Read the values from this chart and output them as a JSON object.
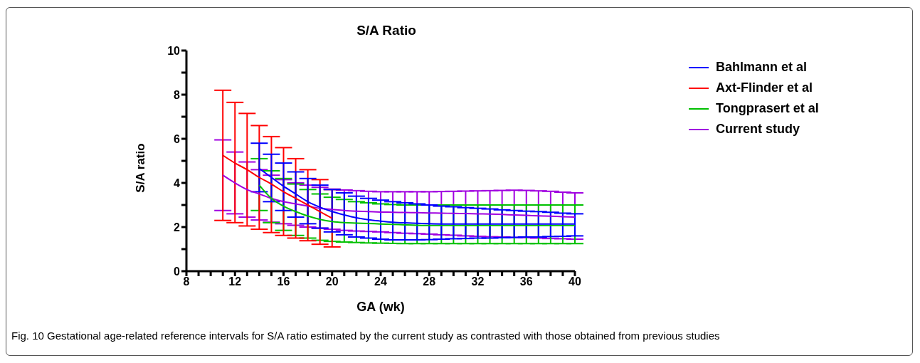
{
  "chart_data": {
    "type": "line",
    "title": "S/A Ratio",
    "xlabel": "GA (wk)",
    "ylabel": "S/A ratio",
    "annotations": [
      "Fig. 10 Gestational age-related reference intervals for S/A ratio estimated by the current study as contrasted with those obtained from previous studies"
    ],
    "xlim": [
      8,
      40
    ],
    "xticks": [
      8,
      {
        "value": 9,
        "label": null
      },
      {
        "value": 10,
        "label": null
      },
      {
        "value": 11,
        "label": null
      },
      12,
      {
        "value": 13,
        "label": null
      },
      {
        "value": 14,
        "label": null
      },
      {
        "value": 15,
        "label": null
      },
      16,
      {
        "value": 17,
        "label": null
      },
      {
        "value": 18,
        "label": null
      },
      {
        "value": 19,
        "label": null
      },
      20,
      {
        "value": 21,
        "label": null
      },
      {
        "value": 22,
        "label": null
      },
      {
        "value": 23,
        "label": null
      },
      24,
      {
        "value": 25,
        "label": null
      },
      {
        "value": 26,
        "label": null
      },
      {
        "value": 27,
        "label": null
      },
      28,
      {
        "value": 29,
        "label": null
      },
      {
        "value": 30,
        "label": null
      },
      {
        "value": 31,
        "label": null
      },
      32,
      {
        "value": 33,
        "label": null
      },
      {
        "value": 34,
        "label": null
      },
      {
        "value": 35,
        "label": null
      },
      36,
      {
        "value": 37,
        "label": null
      },
      {
        "value": 38,
        "label": null
      },
      {
        "value": 39,
        "label": null
      },
      40
    ],
    "ylim": [
      0,
      10
    ],
    "yticks": [
      0,
      {
        "value": 1,
        "label": null
      },
      2,
      {
        "value": 3,
        "label": null
      },
      4,
      {
        "value": 5,
        "label": null
      },
      6,
      {
        "value": 7,
        "label": null
      },
      8,
      {
        "value": 9,
        "label": null
      },
      10
    ],
    "grid": false,
    "legend": "right",
    "marker": "none",
    "line_style": "solid",
    "series": [
      {
        "name": "Bahlmann et al",
        "color": "#0000ff",
        "x": [
          14,
          15,
          16,
          17,
          18,
          19,
          20,
          21,
          22,
          23,
          24,
          25,
          26,
          27,
          28,
          29,
          30,
          31,
          32,
          33,
          34,
          35,
          36,
          37,
          38,
          39,
          40
        ],
        "values": [
          4.65,
          4.25,
          3.85,
          3.5,
          3.15,
          2.9,
          2.7,
          2.55,
          2.42,
          2.33,
          2.27,
          2.22,
          2.19,
          2.17,
          2.15,
          2.14,
          2.14,
          2.14,
          2.14,
          2.14,
          2.14,
          2.14,
          2.14,
          2.14,
          2.14,
          2.14,
          2.14
        ],
        "errors": [
          [
            3.6,
            5.8
          ],
          [
            3.15,
            5.3
          ],
          [
            2.75,
            4.9
          ],
          [
            2.45,
            4.5
          ],
          [
            2.15,
            4.2
          ],
          [
            1.95,
            3.9
          ],
          [
            1.78,
            3.7
          ],
          [
            1.65,
            3.55
          ],
          [
            1.55,
            3.4
          ],
          [
            1.5,
            3.3
          ],
          [
            1.45,
            3.22
          ],
          [
            1.42,
            3.15
          ],
          [
            1.42,
            3.1
          ],
          [
            1.42,
            3.05
          ],
          [
            1.43,
            3.0
          ],
          [
            1.45,
            2.95
          ],
          [
            1.47,
            2.92
          ],
          [
            1.48,
            2.88
          ],
          [
            1.5,
            2.85
          ],
          [
            1.5,
            2.82
          ],
          [
            1.52,
            2.78
          ],
          [
            1.53,
            2.75
          ],
          [
            1.55,
            2.72
          ],
          [
            1.55,
            2.7
          ],
          [
            1.57,
            2.67
          ],
          [
            1.58,
            2.63
          ],
          [
            1.6,
            2.6
          ]
        ]
      },
      {
        "name": "Axt-Flinder et al",
        "color": "#ff0000",
        "x": [
          11,
          12,
          13,
          14,
          15,
          16,
          17,
          18,
          19,
          20
        ],
        "values": [
          5.25,
          4.9,
          4.6,
          4.25,
          3.95,
          3.6,
          3.3,
          3.0,
          2.7,
          2.4
        ],
        "errors": [
          [
            2.3,
            8.2
          ],
          [
            2.2,
            7.65
          ],
          [
            2.05,
            7.15
          ],
          [
            1.9,
            6.6
          ],
          [
            1.75,
            6.1
          ],
          [
            1.62,
            5.6
          ],
          [
            1.5,
            5.1
          ],
          [
            1.38,
            4.6
          ],
          [
            1.22,
            4.15
          ],
          [
            1.1,
            3.7
          ]
        ]
      },
      {
        "name": "Tongprasert et al",
        "color": "#00c000",
        "x": [
          14,
          15,
          16,
          17,
          18,
          19,
          20,
          21,
          22,
          23,
          24,
          25,
          26,
          27,
          28,
          29,
          30,
          31,
          32,
          33,
          34,
          35,
          36,
          37,
          38,
          39,
          40
        ],
        "values": [
          3.9,
          3.3,
          2.95,
          2.7,
          2.5,
          2.35,
          2.25,
          2.2,
          2.18,
          2.16,
          2.14,
          2.12,
          2.1,
          2.08,
          2.07,
          2.07,
          2.07,
          2.07,
          2.07,
          2.07,
          2.07,
          2.07,
          2.07,
          2.07,
          2.07,
          2.07,
          2.07
        ],
        "errors": [
          [
            2.75,
            5.1
          ],
          [
            2.2,
            4.55
          ],
          [
            1.85,
            4.2
          ],
          [
            1.62,
            3.95
          ],
          [
            1.5,
            3.7
          ],
          [
            1.4,
            3.5
          ],
          [
            1.35,
            3.35
          ],
          [
            1.32,
            3.25
          ],
          [
            1.3,
            3.15
          ],
          [
            1.28,
            3.1
          ],
          [
            1.27,
            3.05
          ],
          [
            1.26,
            3.02
          ],
          [
            1.25,
            3.0
          ],
          [
            1.25,
            3.0
          ],
          [
            1.25,
            3.0
          ],
          [
            1.25,
            3.0
          ],
          [
            1.25,
            3.0
          ],
          [
            1.25,
            3.0
          ],
          [
            1.25,
            3.0
          ],
          [
            1.25,
            3.0
          ],
          [
            1.25,
            3.0
          ],
          [
            1.25,
            3.0
          ],
          [
            1.25,
            3.0
          ],
          [
            1.25,
            3.0
          ],
          [
            1.25,
            3.0
          ],
          [
            1.25,
            3.0
          ],
          [
            1.25,
            3.0
          ]
        ]
      },
      {
        "name": "Current study",
        "color": "#a000e0",
        "x": [
          11,
          12,
          13,
          14,
          15,
          16,
          17,
          18,
          19,
          20,
          21,
          22,
          23,
          24,
          25,
          26,
          27,
          28,
          29,
          30,
          31,
          32,
          33,
          34,
          35,
          36,
          37,
          38,
          39,
          40
        ],
        "values": [
          4.35,
          4.0,
          3.7,
          3.5,
          3.3,
          3.15,
          3.05,
          2.95,
          2.85,
          2.8,
          2.75,
          2.72,
          2.7,
          2.68,
          2.67,
          2.66,
          2.65,
          2.64,
          2.63,
          2.62,
          2.61,
          2.6,
          2.59,
          2.57,
          2.55,
          2.53,
          2.51,
          2.49,
          2.47,
          2.45
        ],
        "errors": [
          [
            2.75,
            5.95
          ],
          [
            2.6,
            5.4
          ],
          [
            2.45,
            4.95
          ],
          [
            2.32,
            4.6
          ],
          [
            2.22,
            4.35
          ],
          [
            2.15,
            4.15
          ],
          [
            2.08,
            4.0
          ],
          [
            2.0,
            3.9
          ],
          [
            1.95,
            3.8
          ],
          [
            1.9,
            3.72
          ],
          [
            1.85,
            3.68
          ],
          [
            1.82,
            3.65
          ],
          [
            1.8,
            3.62
          ],
          [
            1.78,
            3.6
          ],
          [
            1.75,
            3.6
          ],
          [
            1.72,
            3.6
          ],
          [
            1.7,
            3.6
          ],
          [
            1.68,
            3.6
          ],
          [
            1.65,
            3.61
          ],
          [
            1.63,
            3.62
          ],
          [
            1.6,
            3.63
          ],
          [
            1.58,
            3.64
          ],
          [
            1.56,
            3.65
          ],
          [
            1.55,
            3.66
          ],
          [
            1.53,
            3.67
          ],
          [
            1.52,
            3.66
          ],
          [
            1.5,
            3.64
          ],
          [
            1.48,
            3.62
          ],
          [
            1.47,
            3.58
          ],
          [
            1.45,
            3.55
          ]
        ]
      }
    ]
  }
}
